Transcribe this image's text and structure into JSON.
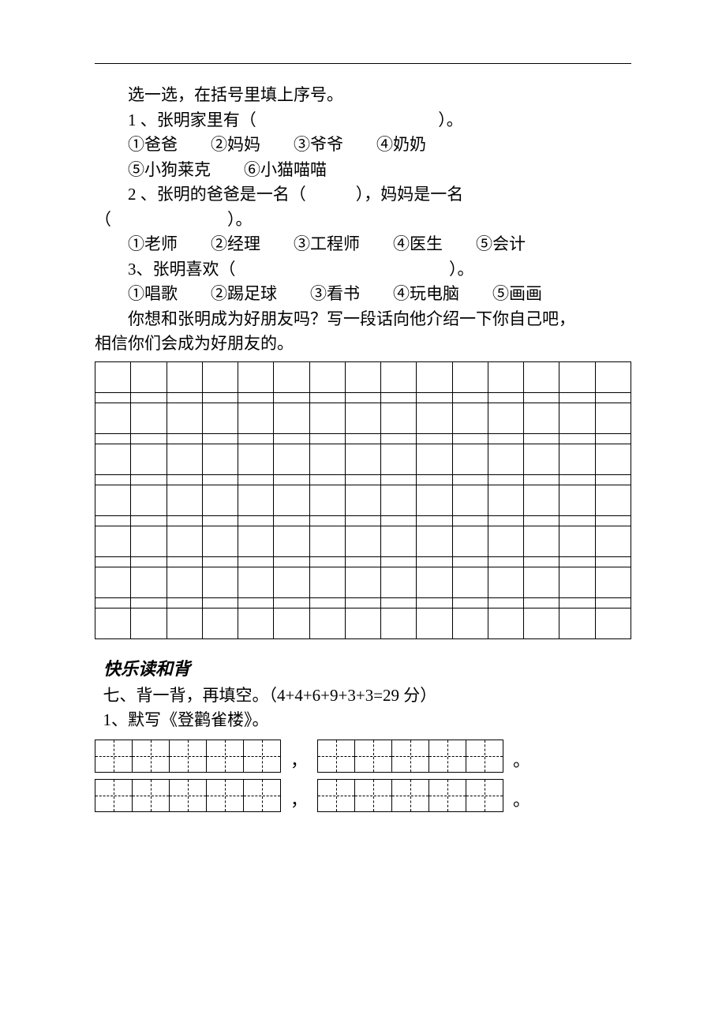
{
  "instruction": "选一选，在括号里填上序号。",
  "q1": {
    "stem_a": "1 、张明家里有（",
    "stem_b": "）。",
    "blank_width": 220,
    "opts1": "①爸爸　　②妈妈　　③爷爷　　④奶奶",
    "opts2": "⑤小狗莱克　　⑥小猫喵喵"
  },
  "q2": {
    "stem_a": " 2 、张明的爸爸是一名（　　　），妈妈是一名",
    "stem_b": "（　　　　　　　）。",
    "opts": "①老师　　②经理　　③工程师　　④医生　　⑤会计"
  },
  "q3": {
    "stem_a": "3、张明喜欢（",
    "stem_b": "）。",
    "blank_width": 260,
    "opts": "①唱歌　　②踢足球　　③看书　　④玩电脑　　⑤画画"
  },
  "prompt_a": "你想和张明成为好朋友吗？写一段话向他介绍一下你自己吧，",
  "prompt_b": "相信你们会成为好朋友的。",
  "writegrid": {
    "cols": 15,
    "rows": 7
  },
  "section_title": "快乐读和背",
  "q7_heading": "七、背一背，再填空。（4+4+6+9+3+3=29 分）",
  "q7_1": "1、默写《登鹳雀楼》。",
  "poem": {
    "box_chars": 5,
    "punct_mid": "，",
    "punct_end": "。"
  }
}
